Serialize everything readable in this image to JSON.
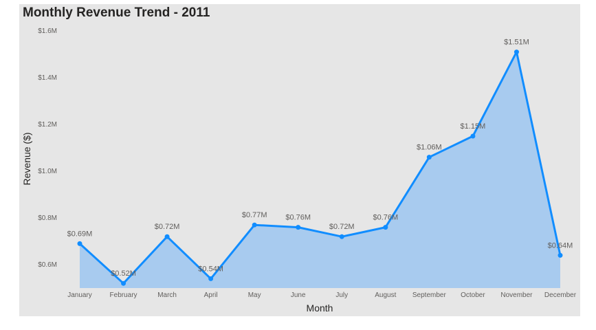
{
  "chart_data": {
    "type": "area",
    "title": "Monthly Revenue Trend - 2011",
    "xlabel": "Month",
    "ylabel": "Revenue ($)",
    "categories": [
      "January",
      "February",
      "March",
      "April",
      "May",
      "June",
      "July",
      "August",
      "September",
      "October",
      "November",
      "December"
    ],
    "series": [
      {
        "values": [
          0.69,
          0.52,
          0.72,
          0.54,
          0.77,
          0.76,
          0.72,
          0.76,
          1.06,
          1.15,
          1.51,
          0.64
        ],
        "labels": [
          "$0.69M",
          "$0.52M",
          "$0.72M",
          "$0.54M",
          "$0.77M",
          "$0.76M",
          "$0.72M",
          "$0.76M",
          "$1.06M",
          "$1.15M",
          "$1.51M",
          "$0.64M"
        ],
        "color": "#118dff",
        "fill": "#a8cbef"
      }
    ],
    "y_ticks": [
      0.6,
      0.8,
      1.0,
      1.2,
      1.4,
      1.6
    ],
    "y_tick_labels": [
      "$0.6M",
      "$0.8M",
      "$1.0M",
      "$1.2M",
      "$1.4M",
      "$1.6M"
    ],
    "ylim": [
      0.5,
      1.6
    ],
    "grid": false
  },
  "colors": {
    "panel_background": "#e6e6e6",
    "text": "#252423",
    "muted_text": "#605e5c"
  }
}
